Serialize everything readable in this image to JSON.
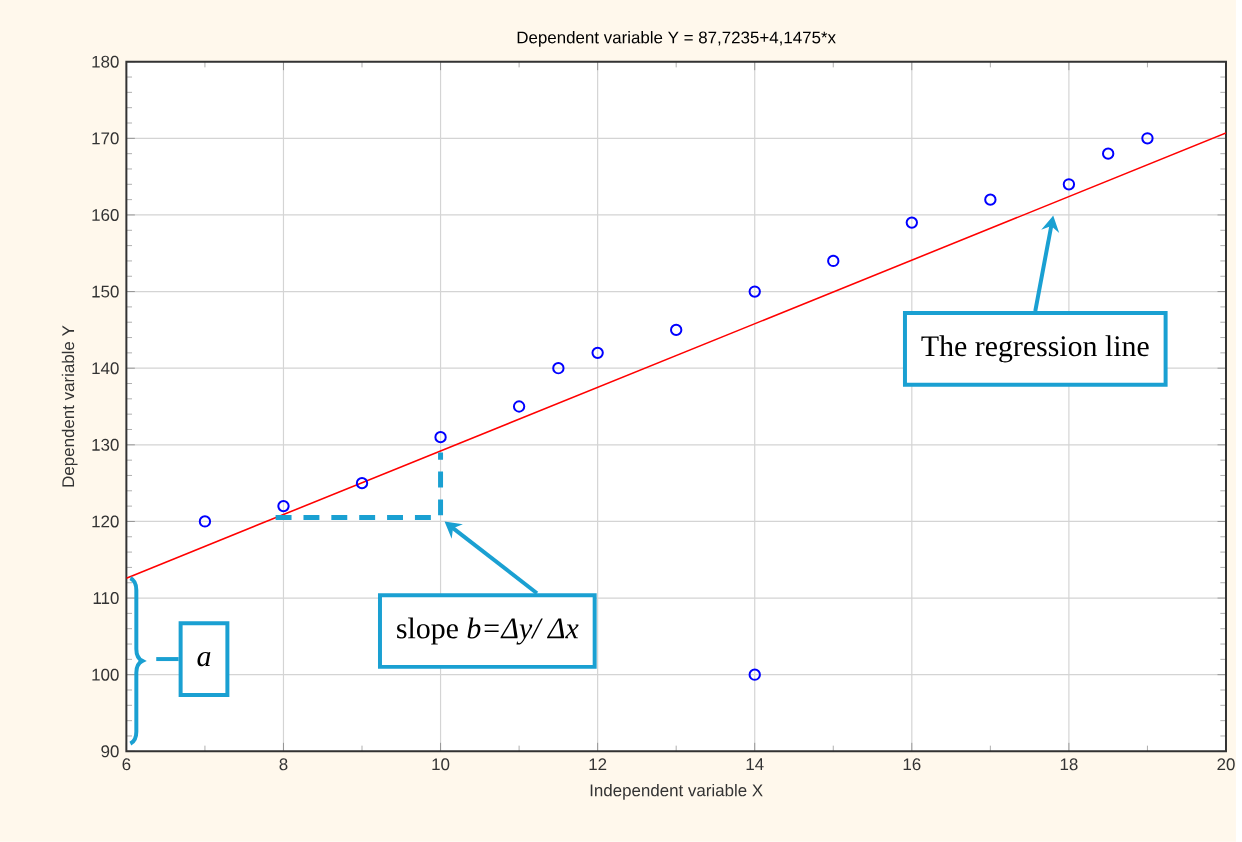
{
  "chart_data": {
    "type": "scatter",
    "title": "Dependent variable Y = 87,7235+4,1475*x",
    "xlabel": "Independent variable X",
    "ylabel": "Dependent variable Y",
    "xlim": [
      6,
      20
    ],
    "ylim": [
      90,
      180
    ],
    "xticks": [
      6,
      8,
      10,
      12,
      14,
      16,
      18,
      20
    ],
    "yticks": [
      90,
      100,
      110,
      120,
      130,
      140,
      150,
      160,
      170,
      180
    ],
    "grid": true,
    "series": [
      {
        "marker": "circle",
        "color": "#0000ff",
        "x": [
          7,
          8,
          9,
          10,
          11,
          11.5,
          12,
          13,
          14,
          14,
          15,
          16,
          17,
          18,
          18.5,
          19
        ],
        "values": [
          120,
          122,
          125,
          131,
          135,
          140,
          142,
          145,
          150,
          100,
          154,
          159,
          162,
          164,
          168,
          170
        ]
      },
      {
        "type": "line",
        "color": "#ff0000",
        "x": [
          6,
          20
        ],
        "values": [
          112.6,
          170.7
        ]
      },
      {
        "type": "line",
        "line_style": "dashed",
        "color": "#1aa0d2",
        "x": [
          7.9,
          10,
          10
        ],
        "values": [
          120.5,
          120.5,
          129
        ]
      }
    ],
    "annotations": [
      "The regression line",
      "slope *b=Δy/ Δx*",
      "a"
    ]
  }
}
